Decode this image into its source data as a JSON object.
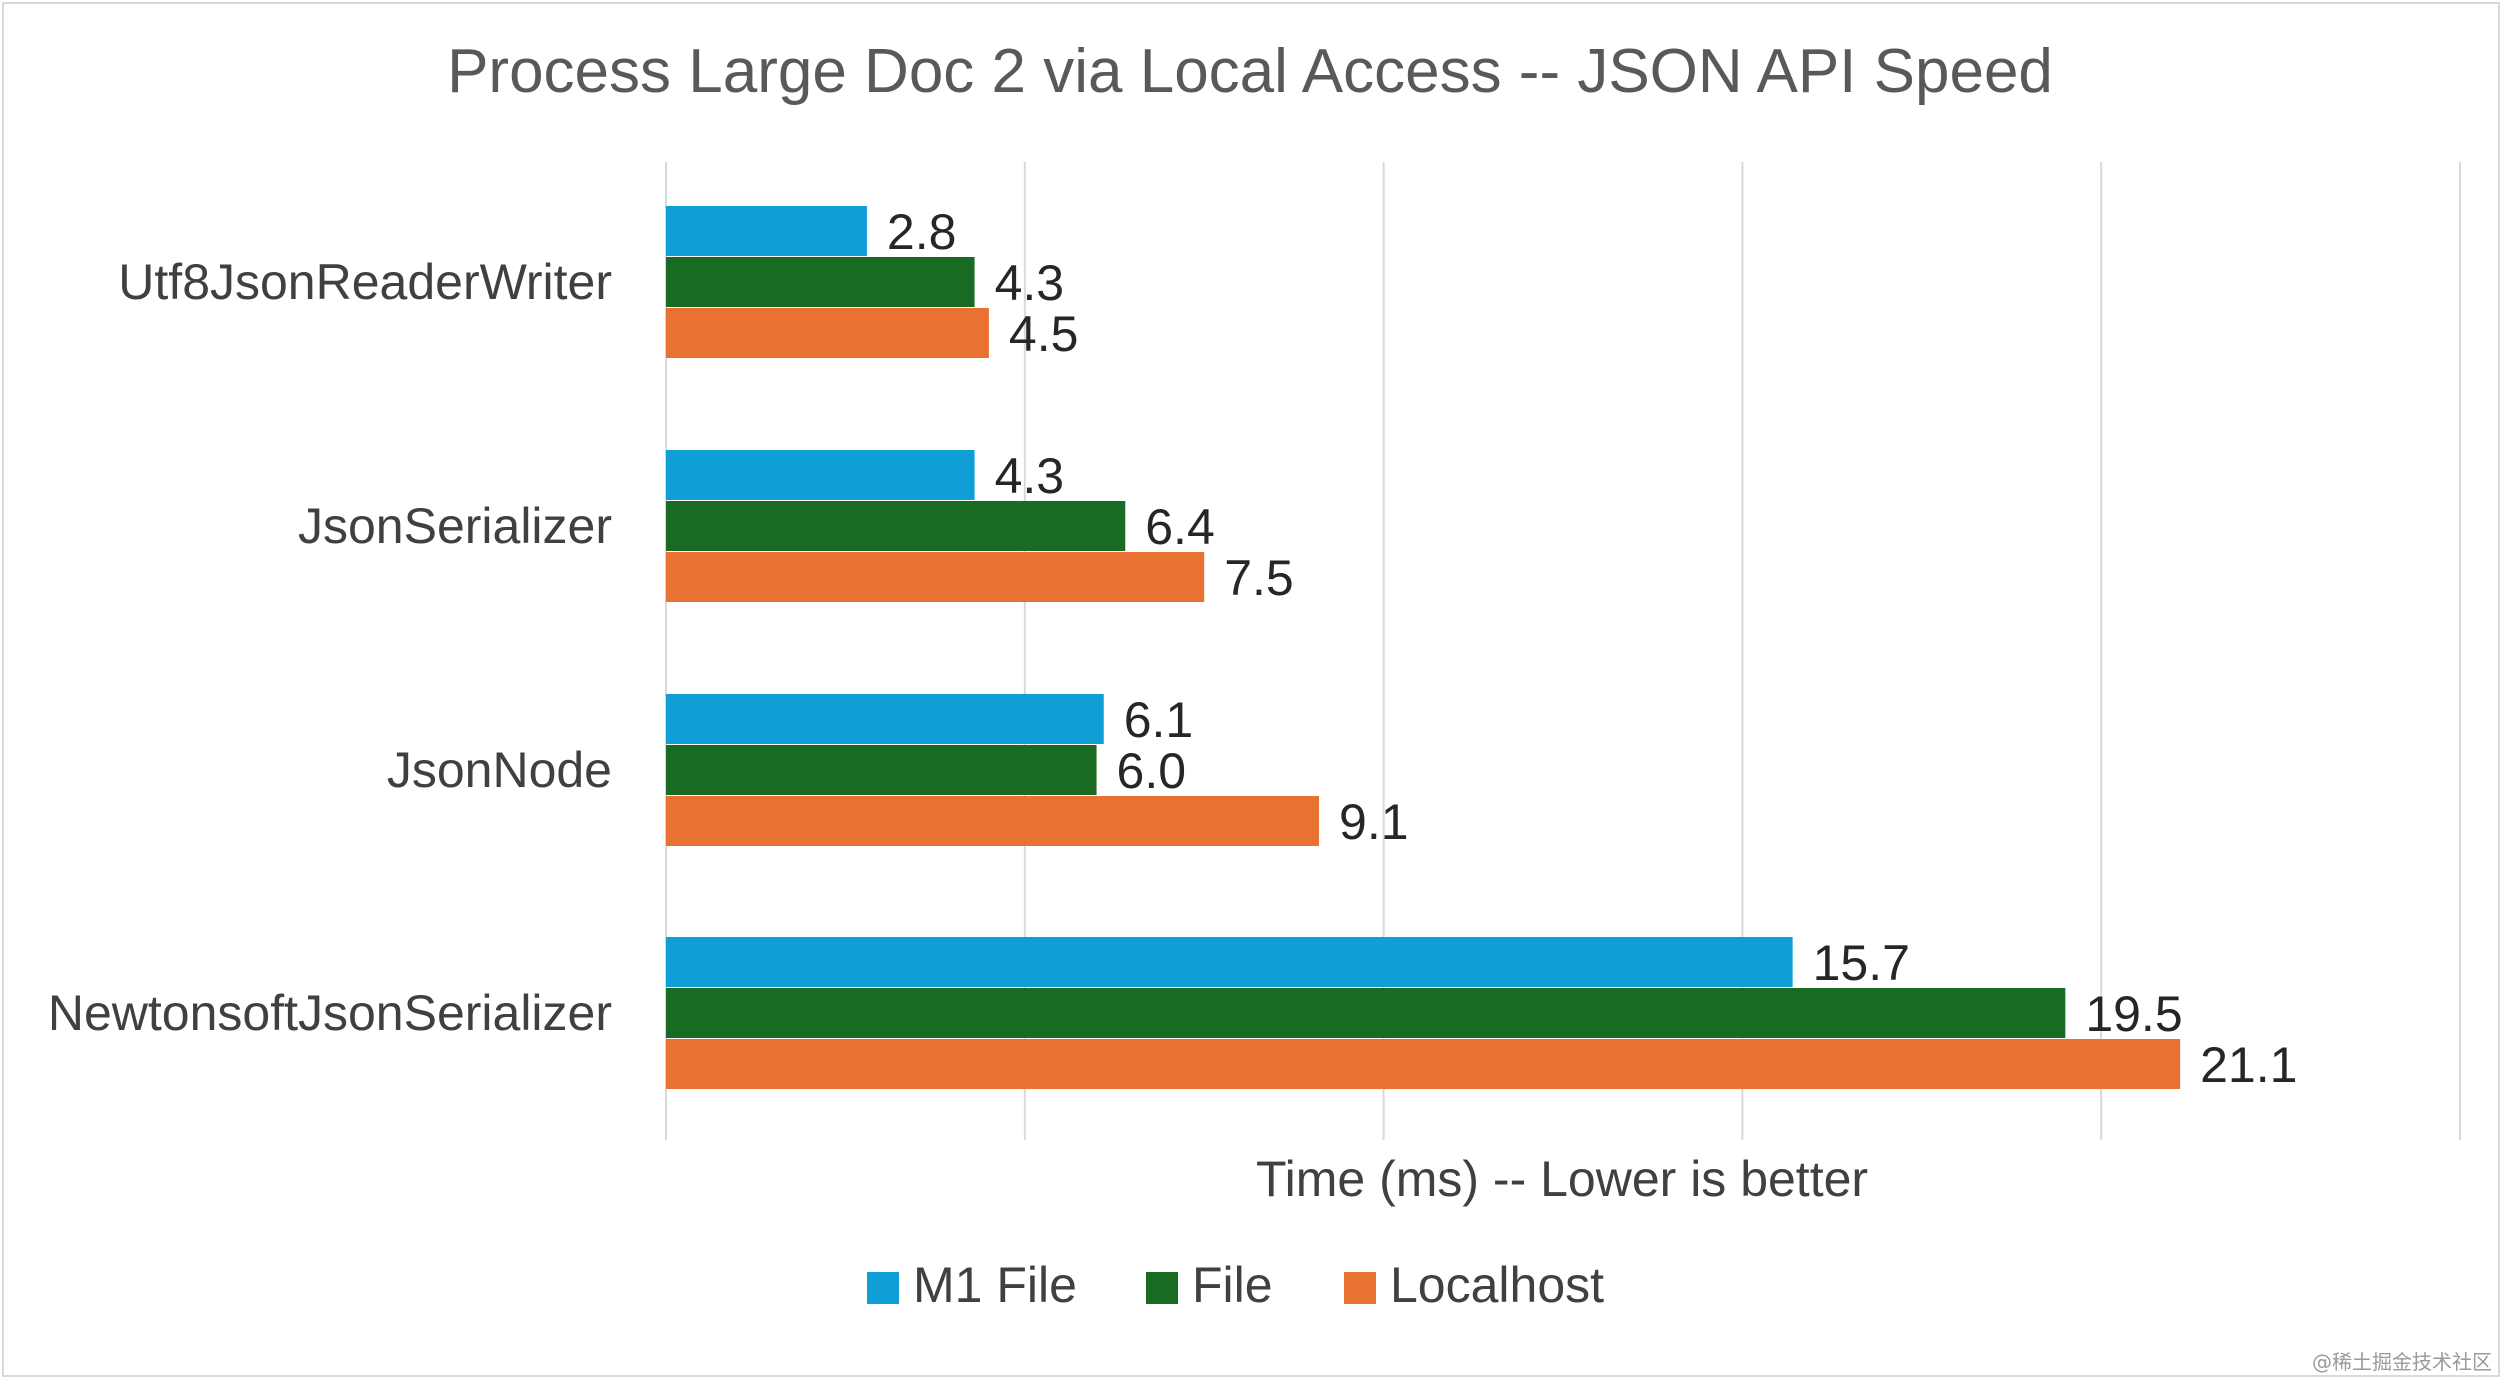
{
  "chart_data": {
    "type": "bar",
    "orientation": "horizontal",
    "title": "Process Large Doc 2 via Local Access -- JSON API Speed",
    "xlabel": "Time (ms) -- Lower is better",
    "ylabel": "",
    "categories": [
      "Utf8JsonReaderWriter",
      "JsonSerializer",
      "JsonNode",
      "NewtonsoftJsonSerializer"
    ],
    "series": [
      {
        "name": "M1 File",
        "color": "#0f9ed5",
        "values": [
          2.8,
          4.3,
          6.1,
          15.7
        ],
        "labels": [
          "2.8",
          "4.3",
          "6.1",
          "15.7"
        ]
      },
      {
        "name": "File",
        "color": "#196b24",
        "values": [
          4.3,
          6.4,
          6.0,
          19.5
        ],
        "labels": [
          "4.3",
          "6.4",
          "6.0",
          "19.5"
        ]
      },
      {
        "name": "Localhost",
        "color": "#e97132",
        "values": [
          4.5,
          7.5,
          9.1,
          21.1
        ],
        "labels": [
          "4.5",
          "7.5",
          "9.1",
          "21.1"
        ]
      }
    ],
    "xlim": [
      0,
      25
    ],
    "grid_step": 5,
    "grid": true,
    "tick_labels_visible": false,
    "legend_position": "bottom"
  },
  "watermark": "@稀土掘金技术社区"
}
